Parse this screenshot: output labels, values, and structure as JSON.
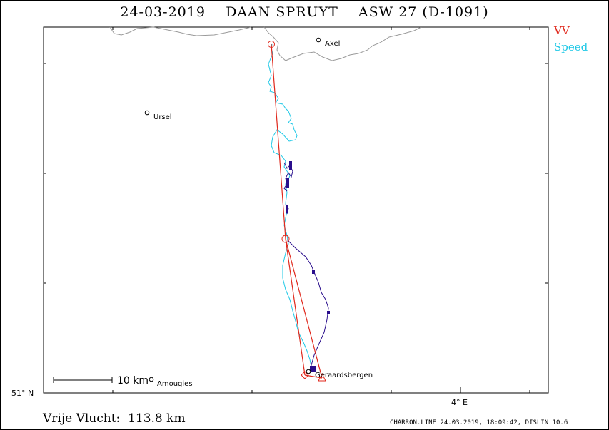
{
  "title": "24-03-2019    DAAN SPRUYT    ASW 27 (D-1091)",
  "legend": [
    {
      "label": "VV",
      "color": "#e0281c"
    },
    {
      "label": "Speed",
      "color": "#1ec8e6"
    }
  ],
  "places": [
    {
      "name": "Axel"
    },
    {
      "name": "Ursel"
    },
    {
      "name": "Amougies"
    },
    {
      "name": "Geraardsbergen"
    }
  ],
  "axis": {
    "lat_label": "51° N",
    "lon_label": "4° E"
  },
  "scale_bar": {
    "label": "10 km"
  },
  "footer": {
    "distance": "Vrije Vlucht:  113.8 km",
    "credit": "CHARRON.LINE 24.03.2019, 18:09:42, DISLIN 10.6"
  },
  "colors": {
    "task_line": "#e0281c",
    "track_speed": "#1ec8e6",
    "track_climb": "#2a0e8c",
    "coastline": "#9a9a9a"
  }
}
